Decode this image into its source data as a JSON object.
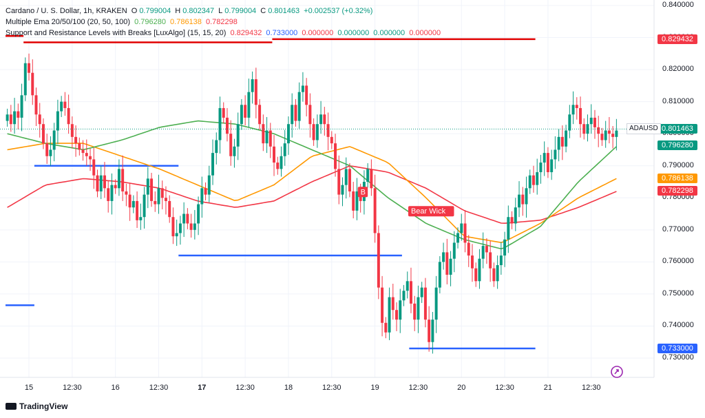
{
  "legend": {
    "symbol": "Cardano / U. S. Dollar, 1h, KRAKEN",
    "o_label": "O",
    "o_value": "0.799004",
    "h_label": "H",
    "h_value": "0.802347",
    "l_label": "L",
    "l_value": "0.799004",
    "c_label": "C",
    "c_value": "0.801463",
    "change": "+0.002537 (+0.32%)",
    "ema_name": "Multiple Ema 20/50/100 (20, 50, 100)",
    "ema_20": "0.796280",
    "ema_50": "0.786138",
    "ema_100": "0.782298",
    "sr_name": "Support and Resistance Levels with Breaks [LuxAlgo] (15, 15, 20)",
    "sr_values": [
      "0.829432",
      "0.733000",
      "0.000000",
      "0.000000",
      "0.000000",
      "0.000000"
    ]
  },
  "price_tags": [
    {
      "text": "0.829432",
      "value": 0.829432,
      "color": "#f23645"
    },
    {
      "text": "0.801463",
      "value": 0.801463,
      "color": "#089981"
    },
    {
      "text": "0.796280",
      "value": 0.79628,
      "color": "#089981"
    },
    {
      "text": "0.786138",
      "value": 0.786138,
      "color": "#ff9800"
    },
    {
      "text": "0.782298",
      "value": 0.782298,
      "color": "#f23645"
    },
    {
      "text": "0.733000",
      "value": 0.733,
      "color": "#2962ff"
    }
  ],
  "symbol_tag": "ADAUSD",
  "brand": "TradingView",
  "colors": {
    "up": "#089981",
    "down": "#f23645",
    "ema20": "#4caf50",
    "ema50": "#ff9800",
    "ema100": "#f23645",
    "support": "#2962ff",
    "resistance": "#e00000"
  },
  "chart_data": {
    "type": "candlestick",
    "title": "Cardano / U. S. Dollar, 1h, KRAKEN",
    "ylim": [
      0.727,
      0.841
    ],
    "y_ticks": [
      "0.840000",
      "0.830000",
      "0.820000",
      "0.810000",
      "0.800000",
      "0.790000",
      "0.780000",
      "0.770000",
      "0.760000",
      "0.750000",
      "0.740000",
      "0.730000"
    ],
    "y_tick_values": [
      0.84,
      0.83,
      0.82,
      0.81,
      0.8,
      0.79,
      0.78,
      0.77,
      0.76,
      0.75,
      0.74,
      0.73
    ],
    "x_ticks": [
      "15",
      "12:30",
      "16",
      "12:30",
      "17",
      "12:30",
      "18",
      "12:30",
      "19",
      "12:30",
      "20",
      "12:30",
      "21",
      "12:30"
    ],
    "x_tick_index": [
      6,
      18,
      30,
      42,
      54,
      66,
      78,
      90,
      102,
      114,
      126,
      138,
      150,
      162
    ],
    "bar_count": 170,
    "closes": [
      0.806,
      0.803,
      0.807,
      0.805,
      0.812,
      0.822,
      0.819,
      0.812,
      0.806,
      0.803,
      0.797,
      0.793,
      0.795,
      0.801,
      0.807,
      0.81,
      0.808,
      0.803,
      0.799,
      0.797,
      0.795,
      0.794,
      0.793,
      0.792,
      0.787,
      0.782,
      0.787,
      0.783,
      0.779,
      0.784,
      0.783,
      0.789,
      0.782,
      0.781,
      0.777,
      0.779,
      0.773,
      0.774,
      0.781,
      0.786,
      0.779,
      0.778,
      0.783,
      0.78,
      0.779,
      0.774,
      0.768,
      0.769,
      0.772,
      0.775,
      0.772,
      0.77,
      0.772,
      0.778,
      0.783,
      0.781,
      0.787,
      0.794,
      0.798,
      0.808,
      0.805,
      0.8,
      0.793,
      0.796,
      0.803,
      0.809,
      0.805,
      0.813,
      0.817,
      0.809,
      0.803,
      0.797,
      0.801,
      0.796,
      0.791,
      0.789,
      0.793,
      0.797,
      0.803,
      0.809,
      0.804,
      0.813,
      0.815,
      0.809,
      0.803,
      0.798,
      0.803,
      0.806,
      0.803,
      0.799,
      0.797,
      0.789,
      0.781,
      0.784,
      0.789,
      0.782,
      0.776,
      0.782,
      0.779,
      0.785,
      0.789,
      0.783,
      0.769,
      0.752,
      0.741,
      0.738,
      0.749,
      0.745,
      0.742,
      0.748,
      0.751,
      0.754,
      0.747,
      0.742,
      0.749,
      0.752,
      0.742,
      0.735,
      0.742,
      0.752,
      0.76,
      0.763,
      0.756,
      0.761,
      0.766,
      0.769,
      0.772,
      0.766,
      0.762,
      0.758,
      0.754,
      0.761,
      0.765,
      0.763,
      0.758,
      0.754,
      0.759,
      0.762,
      0.767,
      0.774,
      0.772,
      0.777,
      0.781,
      0.778,
      0.783,
      0.787,
      0.784,
      0.788,
      0.791,
      0.794,
      0.788,
      0.792,
      0.795,
      0.799,
      0.796,
      0.801,
      0.806,
      0.809,
      0.808,
      0.803,
      0.8,
      0.803,
      0.805,
      0.802,
      0.8,
      0.798,
      0.801,
      0.8,
      0.799,
      0.801
    ],
    "ema20": [
      0.8,
      0.797,
      0.795,
      0.798,
      0.802,
      0.804,
      0.803,
      0.8,
      0.795,
      0.79,
      0.78,
      0.772,
      0.767,
      0.764,
      0.771,
      0.785,
      0.796
    ],
    "ema50": [
      0.795,
      0.797,
      0.797,
      0.793,
      0.789,
      0.784,
      0.779,
      0.784,
      0.793,
      0.796,
      0.791,
      0.78,
      0.768,
      0.766,
      0.772,
      0.78,
      0.786
    ],
    "ema100": [
      0.777,
      0.784,
      0.786,
      0.785,
      0.783,
      0.779,
      0.777,
      0.779,
      0.785,
      0.79,
      0.788,
      0.783,
      0.776,
      0.772,
      0.773,
      0.777,
      0.782
    ],
    "resistance": [
      {
        "x0": 0,
        "x1": 4,
        "value": 0.8305
      },
      {
        "x0": 5,
        "x1": 73,
        "value": 0.8285
      },
      {
        "x0": 74,
        "x1": 146,
        "value": 0.8295
      }
    ],
    "support": [
      {
        "x0": 0,
        "x1": 7,
        "value": 0.7465
      },
      {
        "x0": 8,
        "x1": 47,
        "value": 0.79
      },
      {
        "x0": 48,
        "x1": 109,
        "value": 0.762
      },
      {
        "x0": 112,
        "x1": 146,
        "value": 0.733
      }
    ],
    "annotations": [
      {
        "text": "B",
        "bar": 98,
        "value": 0.7815
      },
      {
        "text": "Bear Wick",
        "bar": 112,
        "value": 0.7755
      }
    ]
  }
}
